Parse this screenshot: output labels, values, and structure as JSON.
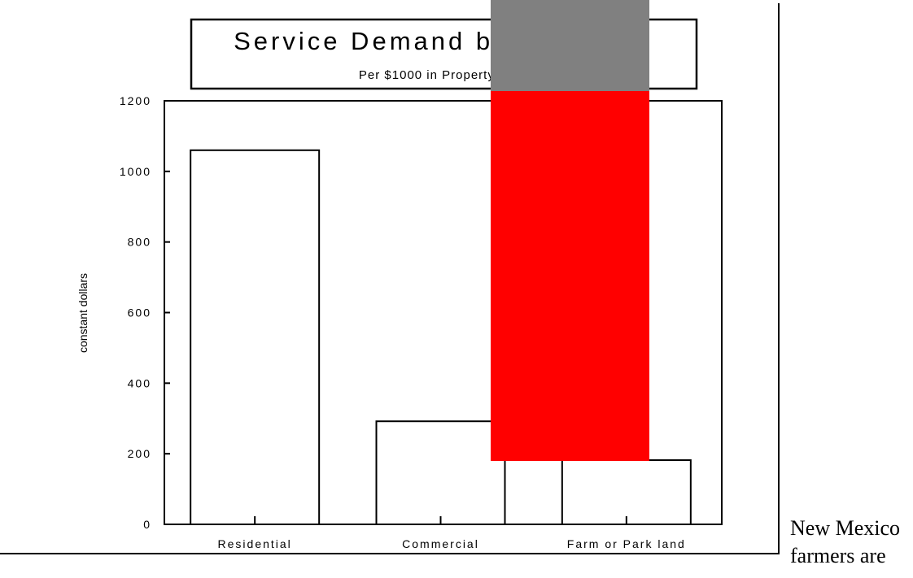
{
  "chart_data": {
    "type": "bar",
    "title": "Service Demand by Land Use",
    "subtitle": "Per $1000 in Property Tax",
    "xlabel": "",
    "ylabel": "constant dollars",
    "ylim": [
      0,
      1200
    ],
    "yticks": [
      "0",
      "200",
      "400",
      "600",
      "800",
      "1000",
      "1200"
    ],
    "categories": [
      "Residential",
      "Commercial",
      "Farm or Park land"
    ],
    "values": [
      1060,
      292,
      182
    ],
    "grid": false,
    "legend": "none"
  },
  "overlay": {
    "redaction_top_color": "#808080",
    "redaction_bottom_color": "#ff0000"
  },
  "side_text": "New Mexico farmers are"
}
